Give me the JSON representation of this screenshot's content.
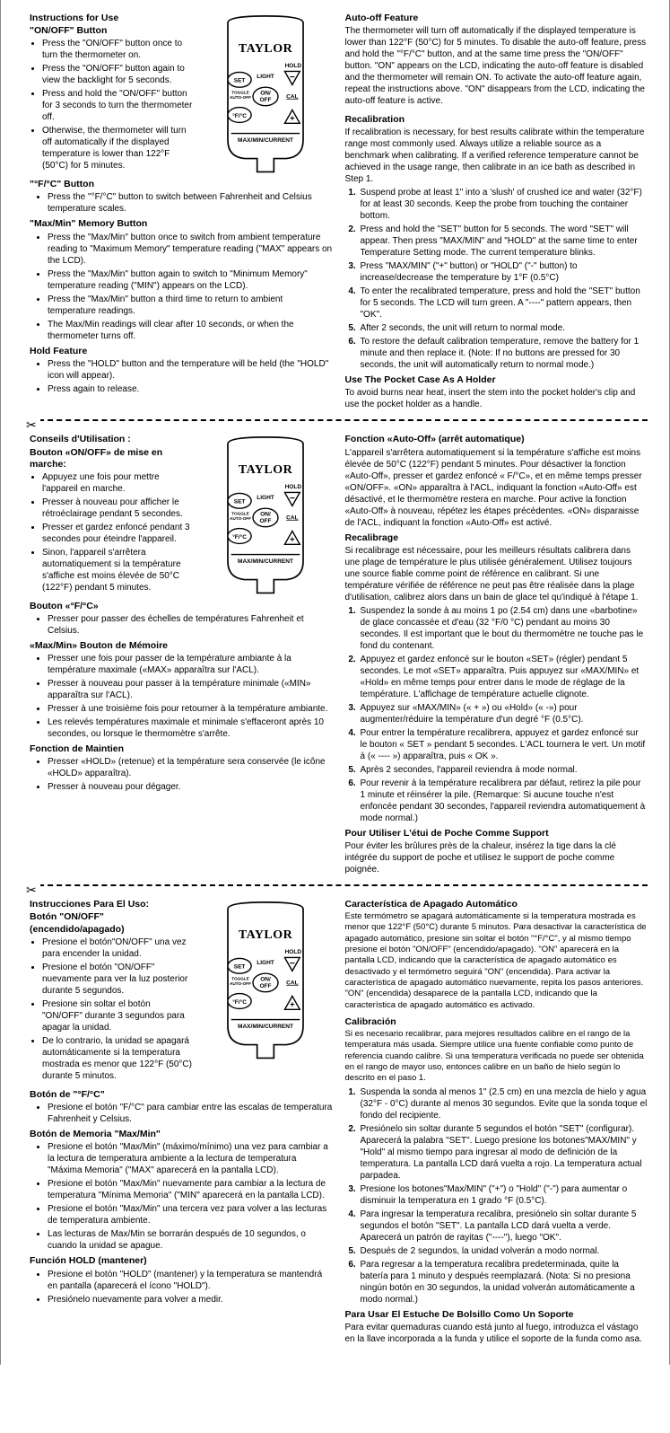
{
  "diagram": {
    "brand": "TAYLOR",
    "labels": {
      "hold": "HOLD",
      "set": "SET",
      "light": "LIGHT",
      "toggle": "TOGGLE AUTO-OFF",
      "onoff": "ON/ OFF",
      "minus": "−",
      "cal": "CAL",
      "plus": "+",
      "fc": "°F/°C",
      "bottom": "MAX/MIN/CURRENT"
    }
  },
  "en": {
    "title": "Instructions for Use",
    "onoff_h": "\"ON/OFF\" Button",
    "onoff": [
      "Press the \"ON/OFF\" button once to turn the thermometer on.",
      "Press the \"ON/OFF\" button again to view the backlight for 5 seconds.",
      "Press and hold the \"ON/OFF\" button for 3 seconds to turn the thermometer off.",
      "Otherwise, the thermometer will turn off automatically if the displayed temperature is lower than 122°F (50°C) for 5 minutes."
    ],
    "fc_h": "\"°F/°C\" Button",
    "fc": [
      "Press the \"°F/°C\" button to switch between Fahrenheit and Celsius temperature scales."
    ],
    "mm_h": "\"Max/Min\" Memory Button",
    "mm": [
      "Press the \"Max/Min\" button once to switch from ambient temperature reading to \"Maximum Memory\" temperature reading (\"MAX\" appears on the LCD).",
      "Press the \"Max/Min\" button again to switch to \"Minimum Memory\" temperature reading (\"MIN\") appears on the LCD).",
      "Press the \"Max/Min\" button a third time to return to ambient temperature readings.",
      "The Max/Min readings will clear after 10 seconds, or when the thermometer turns off."
    ],
    "hold_h": "Hold Feature",
    "hold": [
      "Press the \"HOLD\" button and the temperature will be held (the \"HOLD\" icon will appear).",
      "Press again to release."
    ],
    "auto_h": "Auto-off Feature",
    "auto_p": "The thermometer will turn off automatically if the displayed temperature is lower than 122°F (50°C) for 5 minutes. To disable the auto-off feature, press and hold the \"°F/°C\" button, and at the same time press the \"ON/OFF\" button. \"ON\" appears on the LCD, indicating the auto-off feature is disabled and the thermometer will remain ON. To activate the auto-off feature again, repeat the instructions above. \"ON\" disappears from the LCD, indicating the auto-off feature is active.",
    "recal_h": "Recalibration",
    "recal_p": "If recalibration is necessary, for best results calibrate within the temperature range most commonly used. Always utilize a reliable source as a benchmark when calibrating. If a verified reference temperature cannot be achieved in the usage range, then calibrate in an ice bath as described in Step 1.",
    "recal": [
      "Suspend probe at least 1\" into a 'slush' of crushed ice and water (32°F) for at least 30 seconds. Keep the probe from touching the container bottom.",
      "Press and hold the \"SET\" button for 5 seconds. The word \"SET\" will appear. Then press \"MAX/MIN\" and \"HOLD\" at the same time to enter Temperature Setting mode. The current temperature blinks.",
      "Press \"MAX/MIN\" (\"+\" button) or \"HOLD\" (\"-\" button) to increase/decrease the temperature by 1°F (0.5°C)",
      "To enter the recalibrated temperature, press and hold the \"SET\" button for 5 seconds. The LCD will turn green. A \"----\" pattern appears, then \"OK\".",
      "After 2 seconds, the unit will return to normal mode.",
      "To restore the default calibration temperature, remove the battery for 1 minute and then replace it. (Note: If no buttons are pressed for 30 seconds, the unit will automatically return to normal mode.)"
    ],
    "pocket_h": "Use The Pocket Case As A Holder",
    "pocket_p": "To avoid burns near heat, insert the stem into the pocket holder's clip and use the pocket holder as a handle."
  },
  "fr": {
    "title": "Conseils d'Utilisation :",
    "onoff_h": "Bouton «ON/OFF» de mise en marche:",
    "onoff": [
      "Appuyez une fois pour mettre l'appareil en marche.",
      "Presser à nouveau pour afficher le rétroéclairage pendant 5 secondes.",
      "Presser et gardez enfoncé pendant 3 secondes pour éteindre l'appareil.",
      "Sinon, l'appareil s'arrêtera automatiquement si la température s'affiche est moins élevée de 50°C (122°F) pendant 5 minutes."
    ],
    "fc_h": "Bouton «°F/°C»",
    "fc": [
      "Presser pour passer des échelles de températures Fahrenheit et Celsius."
    ],
    "mm_h": "«Max/Min» Bouton de Mémoire",
    "mm": [
      "Presser une fois pour passer de la température ambiante à la température maximale («MAX» apparaîtra sur l'ACL).",
      "Presser à nouveau pour passer à la température minimale («MIN» apparaîtra sur l'ACL).",
      "Presser à une troisième fois pour retourner à la température ambiante.",
      "Les relevés températures maximale et minimale s'effaceront après 10 secondes, ou lorsque le thermomètre s'arrête."
    ],
    "hold_h": "Fonction de Maintien",
    "hold": [
      "Presser «HOLD» (retenue) et la température sera conservée (le icône «HOLD» apparaîtra).",
      "Presser à nouveau pour dégager."
    ],
    "auto_h": "Fonction «Auto-Off» (arrêt automatique)",
    "auto_p": "L'appareil s'arrêtera automatiquement si la température s'affiche est moins élevée de 50°C (122°F) pendant 5 minutes. Pour désactiver la fonction «Auto-Off», presser et gardez enfoncé « F/°C», et en même temps presser «ON/OFF». «ON» apparaîtra à l'ACL, indiquant la fonction «Auto-Off» est désactivé, et le thermomètre restera en marche. Pour active la fonction «Auto-Off» à nouveau, répétez les étapes précédentes. «ON» disparaisse de l'ACL, indiquant la fonction «Auto-Off» est activé.",
    "recal_h": "Recalibrage",
    "recal_p": "Si recalibrage est nécessaire, pour les meilleurs résultats calibrera dans une plage de température le plus utilisée généralement. Utilisez toujours une source fiable comme point de référence en calibrant. Si une température vérifiée de référence ne peut pas être réalisée dans la plage d'utilisation, calibrez alors dans un bain de glace tel qu'indiqué à l'étape 1.",
    "recal": [
      "Suspendez la sonde à au moins 1 po (2.54 cm) dans une «barbotine» de glace concassée et d'eau (32 °F/0 °C) pendant au moins 30 secondes. Il est important que le bout du thermomètre ne touche pas le fond du contenant.",
      "Appuyez et gardez enfoncé sur le bouton «SET» (régler) pendant 5 secondes. Le mot «SET» apparaîtra. Puis appuyez sur «MAX/MIN» et «Hold» en même temps pour entrer dans le mode de réglage de la température. L'affichage de température actuelle clignote.",
      "Appuyez sur «MAX/MIN» (« + ») ou «Hold» (« -») pour augmenter/réduire la température d'un degré °F (0.5°C).",
      "Pour entrer la température recalibrera, appuyez et gardez enfoncé sur le bouton « SET » pendant 5 secondes. L'ACL tournera le vert. Un motif à (« ---- ») apparaîtra, puis « OK ».",
      "Après 2 secondes, l'appareil reviendra à mode normal.",
      "Pour revenir à la température recalibrera par défaut, retirez la pile pour 1 minute et réinsérer la pile. (Remarque: Si aucune touche n'est enfoncée pendant 30 secondes, l'appareil reviendra automatiquement à mode normal.)"
    ],
    "pocket_h": "Pour Utiliser L'étui de Poche Comme Support",
    "pocket_p": "Pour éviter les brûlures près de la chaleur, insérez la tige dans la clé intégrée du support de poche et utilisez le support de poche comme poignée."
  },
  "es": {
    "title": "Instrucciones Para El Uso:",
    "onoff_h1": "Botón \"ON/OFF\"",
    "onoff_h2": "(encendido/apagado)",
    "onoff": [
      "Presione el botón\"ON/OFF\" una vez para encender la unidad.",
      "Presione el botón \"ON/OFF\" nuevamente para ver la luz posterior durante 5 segundos.",
      "Presione sin soltar el botón \"ON/OFF\" durante 3 segundos para apagar la unidad.",
      "De lo contrario, la unidad se apagará automáticamente si la temperatura mostrada es menor que 122°F (50°C) durante 5 minutos."
    ],
    "fc_h": "Botón de \"°F/°C\"",
    "fc": [
      "Presione el botón \"F/°C\" para cambiar entre las escalas de temperatura Fahrenheit y Celsius."
    ],
    "mm_h": "Botón de Memoria \"Max/Min\"",
    "mm": [
      "Presione el botón \"Max/Min\" (máximo/mínimo) una vez para cambiar a la lectura de temperatura ambiente a la lectura de temperatura \"Máxima Memoria\" (\"MAX\" aparecerá en la pantalla LCD).",
      "Presione el botón \"Max/Min\" nuevamente para cambiar a la lectura de temperatura \"Mínima Memoria\" (\"MIN\" aparecerá en la pantalla LCD).",
      "Presione el botón \"Max/Min\" una tercera vez para volver a las lecturas de temperatura ambiente.",
      "Las lecturas de Max/Min se borrarán después de 10 segundos, o cuando la unidad se apague."
    ],
    "hold_h": "Función HOLD (mantener)",
    "hold": [
      "Presione el botón \"HOLD\" (mantener) y la temperatura se mantendrá en pantalla (aparecerá el ícono \"HOLD\").",
      "Presiónelo nuevamente para volver a medir."
    ],
    "auto_h": "Característica de Apagado Automático",
    "auto_p": "Este termómetro se apagará automáticamente si la temperatura mostrada es menor que 122°F (50°C) durante 5 minutos. Para desactivar la característica de apagado automático, presione sin soltar el botón \"°F/°C\", y al mismo tiempo presione el botón \"ON/OFF\" (encendido/apagado). \"ON\" aparecerá en la pantalla LCD, indicando que la característica de apagado automático es desactivado y el termómetro seguirá \"ON\" (encendida). Para activar la característica de apagado automático nuevamente, repita los pasos anteriores. \"ON\" (encendida) desaparece de la pantalla LCD, indicando que la característica de apagado automático es activado.",
    "recal_h": "Calibración",
    "recal_p": "Si es necesario recalibrar, para mejores resultados calibre en el rango de la temperatura más usada. Siempre utilice una fuente confiable como punto de referencia cuando calibre. Si una temperatura verificada no puede ser obtenida en el rango de mayor uso, entonces calibre en un baño de hielo según lo descrito en el paso 1.",
    "recal": [
      "Suspenda la sonda al menos 1\" (2.5 cm) en una mezcla de hielo y agua (32°F - 0°C) durante al menos 30 segundos. Evite que la sonda toque el fondo del recipiente.",
      "Presiónelo sin soltar durante 5 segundos el botón \"SET\" (configurar). Aparecerá la palabra \"SET\". Luego presione los botones\"MAX/MIN\" y \"Hold\"  al mismo tiempo para ingresar al modo de definición de la temperatura. La pantalla LCD dará vuelta a rojo. La temperatura actual parpadea.",
      "Presione los botones\"Max/MIN\" (\"+\") o \"Hold\" (\"-\") para aumentar o disminuir la temperatura en 1 grado °F (0.5°C).",
      "Para ingresar la temperatura recalibra, presiónelo sin soltar durante 5 segundos el botón \"SET\". La pantalla LCD dará vuelta a verde. Aparecerá un patrón de rayitas  (\"----\"), luego \"OK\".",
      "Después de 2 segundos, la unidad volverán a modo normal.",
      "Para regresar a la temperatura recalibra predeterminada, quite la batería para 1 minuto y después reemplazará. (Nota: Si no presiona ningún botón en 30 segundos, la unidad volverán automáticamente a modo normal.)"
    ],
    "pocket_h": "Para Usar El Estuche De Bolsillo Como Un Soporte",
    "pocket_p": "Para evitar quemaduras cuando está junto al fuego, introduzca el vástago en la llave incorporada a la funda y utilice el soporte de la funda como asa."
  }
}
